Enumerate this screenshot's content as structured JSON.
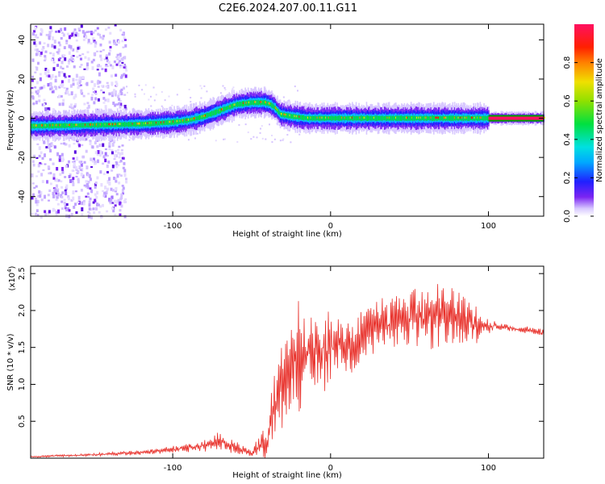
{
  "title": "C2E6.2024.207.00.11.G11",
  "chart_data": [
    {
      "type": "heatmap",
      "xlabel": "Height of straight line (km)",
      "ylabel": "Frequency (Hz)",
      "xlim": [
        -190,
        135
      ],
      "ylim": [
        -50,
        48
      ],
      "x_ticks": [
        -100,
        0,
        100
      ],
      "y_ticks": [
        -40,
        -20,
        0,
        20,
        40
      ],
      "ridge": {
        "x": [
          -190,
          -150,
          -120,
          -100,
          -90,
          -80,
          -70,
          -60,
          -50,
          -42,
          -38,
          -35,
          -32,
          -25,
          -15,
          0,
          20,
          50,
          80,
          100,
          135
        ],
        "y": [
          -4,
          -3.5,
          -3,
          -2,
          -1,
          1,
          4,
          7,
          8,
          8,
          7,
          5,
          2,
          1,
          0,
          0,
          0,
          0,
          0,
          0,
          0
        ]
      },
      "colorbar": {
        "label": "Normalized spectral amplitude",
        "range": [
          0,
          1
        ],
        "ticks": [
          "0.0",
          "0.2",
          "0.4",
          "0.6",
          "0.8"
        ],
        "tick_values": [
          0.0,
          0.2,
          0.4,
          0.6,
          0.8
        ]
      }
    },
    {
      "type": "line",
      "xlabel": "Height of straight line (km)",
      "ylabel": "SNR (10 * v/v)",
      "y_multiplier": "(x10",
      "y_multiplier_exp": "4",
      "y_multiplier_close": ")",
      "xlim": [
        -190,
        135
      ],
      "ylim": [
        0,
        2.6
      ],
      "x_ticks": [
        -100,
        0,
        100
      ],
      "y_ticks": [
        0.5,
        1.0,
        1.5,
        2.0,
        2.5
      ],
      "y_tick_labels": [
        "0.5",
        "1.0",
        "1.5",
        "2.0",
        "2.5"
      ],
      "series": [
        {
          "color": "#e8302a",
          "envelope_x": [
            -190,
            -150,
            -120,
            -100,
            -80,
            -70,
            -60,
            -50,
            -40,
            -35,
            -30,
            -25,
            -20,
            -10,
            0,
            10,
            25,
            40,
            60,
            75,
            90,
            100,
            105,
            135
          ],
          "envelope_y": [
            0.02,
            0.05,
            0.08,
            0.12,
            0.18,
            0.25,
            0.15,
            0.08,
            0.3,
            0.8,
            1.1,
            1.3,
            1.45,
            1.5,
            1.55,
            1.6,
            1.8,
            1.9,
            1.95,
            2.0,
            1.85,
            1.8,
            1.8,
            1.7
          ],
          "amplitude": [
            0.01,
            0.02,
            0.03,
            0.05,
            0.08,
            0.12,
            0.08,
            0.05,
            0.25,
            0.55,
            0.6,
            0.7,
            0.75,
            0.55,
            0.5,
            0.45,
            0.35,
            0.35,
            0.4,
            0.4,
            0.3,
            0.1,
            0.05,
            0.05
          ]
        }
      ]
    }
  ]
}
